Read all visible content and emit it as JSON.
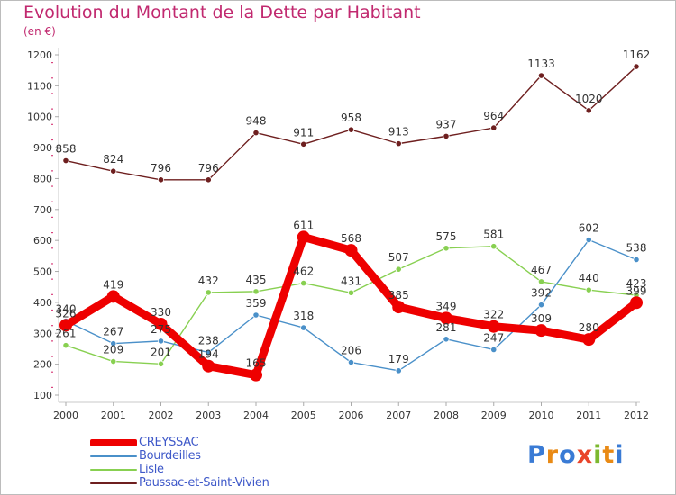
{
  "title": "Evolution du Montant de la Dette par Habitant",
  "unit": "(en €)",
  "logo": {
    "letters": [
      "P",
      "r",
      "o",
      "x",
      "i",
      "t",
      "i"
    ],
    "colors": [
      "#3a7bd5",
      "#e98a15",
      "#3a7bd5",
      "#e9442a",
      "#7cb82f",
      "#e98a15",
      "#3a7bd5"
    ]
  },
  "chart_data": {
    "type": "line",
    "title": "Evolution du Montant de la Dette par Habitant",
    "ylabel": "(en €)",
    "xlabel": "",
    "x": [
      "2000",
      "2001",
      "2002",
      "2003",
      "2004",
      "2005",
      "2006",
      "2007",
      "2008",
      "2009",
      "2010",
      "2011",
      "2012"
    ],
    "ylim": [
      100,
      1200
    ],
    "yticks": [
      100,
      200,
      300,
      400,
      500,
      600,
      700,
      800,
      900,
      1000,
      1100,
      1200
    ],
    "grid": false,
    "legend": "bottom-left",
    "series": [
      {
        "name": "CREYSSAC",
        "values": [
          326,
          419,
          330,
          194,
          165,
          611,
          568,
          385,
          349,
          322,
          309,
          280,
          399
        ],
        "color": "#ee0000"
      },
      {
        "name": "Bourdeilles",
        "values": [
          340,
          267,
          275,
          238,
          359,
          318,
          206,
          179,
          281,
          247,
          392,
          602,
          538
        ],
        "color": "#4a90c9"
      },
      {
        "name": "Lisle",
        "values": [
          261,
          209,
          201,
          432,
          435,
          462,
          431,
          507,
          575,
          581,
          467,
          440,
          423
        ],
        "color": "#88d051"
      },
      {
        "name": "Paussac-et-Saint-Vivien",
        "values": [
          858,
          824,
          796,
          796,
          948,
          911,
          958,
          913,
          937,
          964,
          1133,
          1020,
          1162
        ],
        "color": "#6e1f1f"
      }
    ]
  }
}
